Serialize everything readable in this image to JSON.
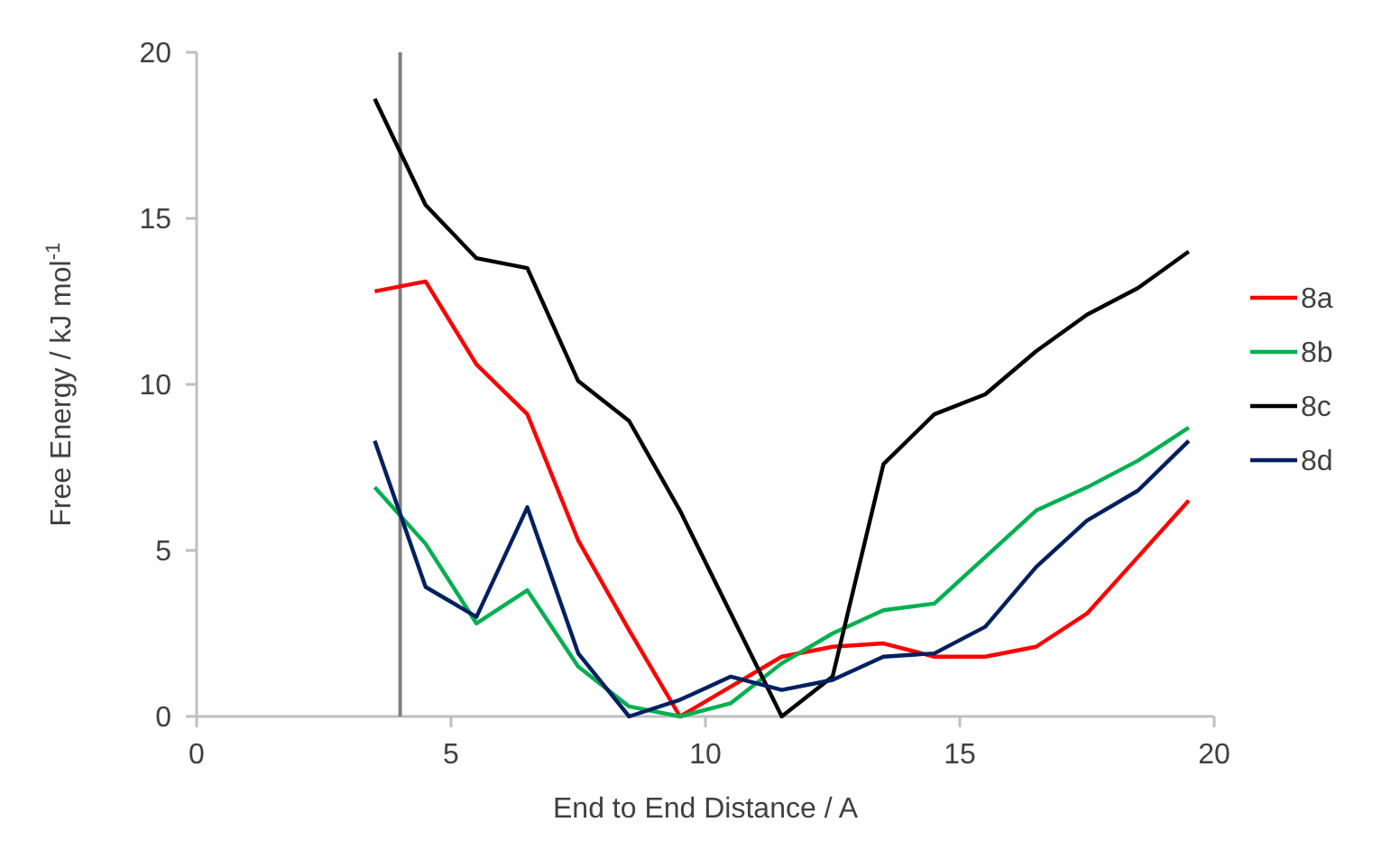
{
  "chart_data": {
    "type": "line",
    "xlabel": "End to End Distance / A",
    "ylabel": "Free Energy / kJ mol$^{-1}$",
    "x": [
      3.5,
      4.5,
      5.5,
      6.5,
      7.5,
      8.5,
      9.5,
      10.5,
      11.5,
      12.5,
      13.5,
      14.5,
      15.5,
      16.5,
      17.5,
      18.5,
      19.5
    ],
    "series": [
      {
        "name": "8a",
        "color": "#ff0000",
        "values": [
          12.8,
          13.1,
          10.6,
          9.1,
          5.3,
          2.6,
          0,
          0.9,
          1.8,
          2.1,
          2.2,
          1.8,
          1.8,
          2.1,
          3.1,
          4.8,
          6.5
        ]
      },
      {
        "name": "8b",
        "color": "#00b050",
        "values": [
          6.9,
          5.2,
          2.8,
          3.8,
          1.5,
          0.3,
          0,
          0.4,
          1.6,
          2.5,
          3.2,
          3.4,
          4.8,
          6.2,
          6.9,
          7.7,
          8.7
        ]
      },
      {
        "name": "8c",
        "color": "#000000",
        "values": [
          18.6,
          15.4,
          13.8,
          13.5,
          10.1,
          8.9,
          6.2,
          3.1,
          0,
          1.2,
          7.6,
          9.1,
          9.7,
          11.0,
          12.1,
          12.9,
          14.0
        ]
      },
      {
        "name": "8d",
        "color": "#002060",
        "values": [
          8.3,
          3.9,
          3.0,
          6.3,
          1.9,
          0,
          0.5,
          1.2,
          0.8,
          1.1,
          1.8,
          1.9,
          2.7,
          4.5,
          5.9,
          6.8,
          8.3
        ]
      }
    ],
    "xlim": [
      0,
      20
    ],
    "xticks": [
      0,
      5,
      10,
      15,
      20
    ],
    "ylim": [
      0,
      20
    ],
    "yticks": [
      0,
      5,
      10,
      15,
      20
    ],
    "ref_lines": [
      {
        "axis": "x",
        "value": 4,
        "color": "#808080"
      }
    ],
    "grid": false,
    "legend": "right",
    "marker": "none",
    "line_style": "solid"
  }
}
